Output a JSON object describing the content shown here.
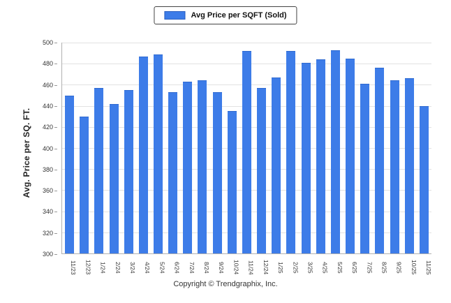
{
  "legend": {
    "label": "Avg Price per SQFT (Sold)"
  },
  "footer": {
    "text": "Copyright © Trendgraphix, Inc."
  },
  "chart_data": {
    "type": "bar",
    "title": "",
    "xlabel": "",
    "ylabel": "Avg. Price per SQ. FT.",
    "ylim": [
      300,
      500
    ],
    "ytick_step": 20,
    "grid": true,
    "legend_position": "top-center",
    "bar_color": "#3d7ce8",
    "categories": [
      "11/23",
      "12/23",
      "1/24",
      "2/24",
      "3/24",
      "4/24",
      "5/24",
      "6/24",
      "7/24",
      "8/24",
      "9/24",
      "10/24",
      "11/24",
      "12/24",
      "1/25",
      "2/25",
      "3/25",
      "4/25",
      "5/25",
      "6/25",
      "7/25",
      "8/25",
      "9/25",
      "10/25",
      "11/25"
    ],
    "values": [
      450,
      430,
      457,
      442,
      455,
      487,
      489,
      453,
      463,
      464,
      453,
      435,
      492,
      457,
      467,
      492,
      481,
      484,
      493,
      485,
      461,
      476,
      464,
      466,
      440
    ]
  }
}
